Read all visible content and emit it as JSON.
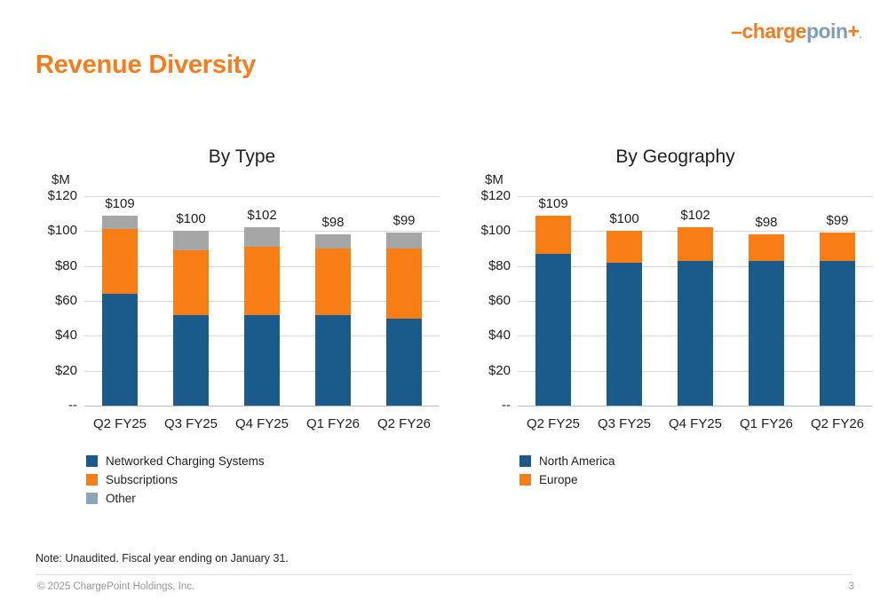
{
  "slide": {
    "title": "Revenue Diversity",
    "note": "Note: Unaudited. Fiscal year ending on January 31.",
    "copyright": "© 2025 ChargePoint Holdings, Inc.",
    "page_number": "3"
  },
  "logo": {
    "dash": "–",
    "charge": "charge",
    "poin": "poin",
    "plus": "+",
    "dot": "."
  },
  "colors": {
    "title_orange": "#F97C1B",
    "bar_blue": "#1A5B8C",
    "bar_orange": "#F97D15",
    "bar_gray": "#A6A6A6",
    "legend_other_slate": "#8CA5B8",
    "logo_orange": "#F47C20",
    "logo_slate": "#7F9DB3",
    "gridline": "#D9D9D9",
    "axis_line": "#BFBFBF",
    "footer_gray": "#969696"
  },
  "chart_data": [
    {
      "type": "bar",
      "stacked": true,
      "title": "By Type",
      "ylabel": "$M",
      "xlabel": "",
      "ylim": [
        0,
        120
      ],
      "grid": true,
      "legend_position": "bottom-left",
      "categories": [
        "Q2 FY25",
        "Q3 FY25",
        "Q4 FY25",
        "Q1 FY26",
        "Q2 FY26"
      ],
      "series": [
        {
          "name": "Networked Charging Systems",
          "color": "#1A5B8C",
          "values": [
            64,
            52,
            52,
            52,
            50
          ]
        },
        {
          "name": "Subscriptions",
          "color": "#F97D15",
          "values": [
            37,
            37,
            39,
            38,
            40
          ]
        },
        {
          "name": "Other",
          "color": "#A6A6A6",
          "values": [
            8,
            11,
            11,
            8,
            9
          ]
        }
      ],
      "totals_labels": [
        "$109",
        "$100",
        "$102",
        "$98",
        "$99"
      ],
      "yticks": [
        {
          "label": "$120",
          "value": 120
        },
        {
          "label": "$100",
          "value": 100
        },
        {
          "label": "$80",
          "value": 80
        },
        {
          "label": "$60",
          "value": 60
        },
        {
          "label": "$40",
          "value": 40
        },
        {
          "label": "$20",
          "value": 20
        },
        {
          "label": "--",
          "value": 0
        }
      ],
      "legend": [
        {
          "label": "Networked Charging Systems",
          "color": "#1A5B8C"
        },
        {
          "label": "Subscriptions",
          "color": "#F97D15"
        },
        {
          "label": "Other",
          "color": "#8CA5B8"
        }
      ]
    },
    {
      "type": "bar",
      "stacked": true,
      "title": "By Geography",
      "ylabel": "$M",
      "xlabel": "",
      "ylim": [
        0,
        120
      ],
      "grid": true,
      "legend_position": "bottom-left",
      "categories": [
        "Q2 FY25",
        "Q3 FY25",
        "Q4 FY25",
        "Q1 FY26",
        "Q2 FY26"
      ],
      "series": [
        {
          "name": "North America",
          "color": "#1A5B8C",
          "values": [
            87,
            82,
            83,
            83,
            83
          ]
        },
        {
          "name": "Europe",
          "color": "#F97D15",
          "values": [
            22,
            18,
            19,
            15,
            16
          ]
        }
      ],
      "totals_labels": [
        "$109",
        "$100",
        "$102",
        "$98",
        "$99"
      ],
      "yticks": [
        {
          "label": "$120",
          "value": 120
        },
        {
          "label": "$100",
          "value": 100
        },
        {
          "label": "$80",
          "value": 80
        },
        {
          "label": "$60",
          "value": 60
        },
        {
          "label": "$40",
          "value": 40
        },
        {
          "label": "$20",
          "value": 20
        },
        {
          "label": "--",
          "value": 0
        }
      ],
      "legend": [
        {
          "label": "North America",
          "color": "#1A5B8C"
        },
        {
          "label": "Europe",
          "color": "#F97D15"
        }
      ]
    }
  ]
}
